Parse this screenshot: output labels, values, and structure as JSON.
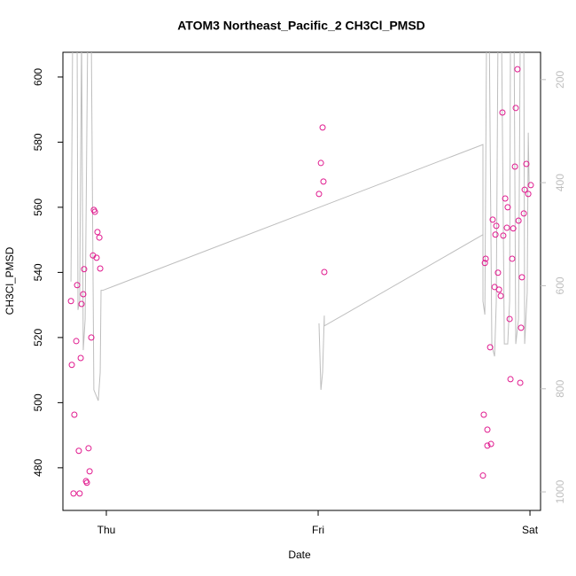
{
  "chart_data": {
    "type": "scatter",
    "title": "ATOM3 Northeast_Pacific_2 CH3Cl_PMSD",
    "xlabel": "Date",
    "ylabel": "CH3Cl_PMSD",
    "xlim": [
      -0.205,
      2.05
    ],
    "xticks": [
      {
        "value": 0,
        "label": "Thu"
      },
      {
        "value": 1,
        "label": "Fri"
      },
      {
        "value": 2,
        "label": "Sat"
      }
    ],
    "ylim": [
      466.9,
      607.6
    ],
    "yticks": [
      480,
      500,
      520,
      540,
      560,
      580,
      600
    ],
    "y2lim": [
      1036,
      147
    ],
    "y2ticks": [
      200,
      400,
      600,
      800,
      1000
    ],
    "y2color": "#bebebe",
    "series": [
      {
        "type": "scatter",
        "color": "#e0198e",
        "x": [
          -0.167,
          -0.163,
          -0.151,
          -0.155,
          -0.138,
          -0.142,
          -0.13,
          -0.126,
          -0.117,
          -0.121,
          -0.109,
          -0.105,
          -0.096,
          -0.092,
          -0.084,
          -0.079,
          -0.071,
          -0.059,
          -0.054,
          -0.063,
          -0.042,
          -0.033,
          -0.046,
          -0.029,
          1.021,
          1.013,
          1.025,
          1.004,
          1.029,
          1.778,
          1.782,
          1.791,
          1.787,
          1.799,
          1.799,
          1.816,
          1.812,
          1.824,
          1.833,
          1.837,
          1.841,
          1.849,
          1.854,
          1.862,
          1.87,
          1.874,
          1.883,
          1.891,
          1.895,
          1.904,
          1.908,
          1.916,
          1.921,
          1.929,
          1.933,
          1.941,
          1.946,
          1.954,
          1.958,
          1.962,
          1.971,
          1.975,
          1.983,
          1.992,
          2.004
        ],
        "values": [
          531.2,
          511.6,
          496.3,
          472.1,
          536.1,
          518.9,
          485.2,
          472.1,
          530.3,
          513.7,
          533.3,
          541.0,
          475.9,
          475.4,
          486.0,
          478.9,
          520.0,
          559.2,
          558.6,
          545.2,
          552.4,
          550.7,
          544.5,
          541.2,
          584.5,
          573.6,
          567.9,
          564.1,
          540.1,
          477.6,
          496.3,
          544.2,
          542.9,
          491.7,
          486.8,
          487.3,
          517.0,
          556.2,
          535.5,
          551.6,
          554.3,
          539.9,
          534.7,
          532.8,
          589.1,
          551.3,
          562.7,
          553.7,
          560.0,
          525.7,
          507.2,
          544.2,
          553.5,
          572.5,
          590.5,
          602.4,
          555.9,
          506.1,
          523.0,
          538.5,
          558.1,
          565.4,
          573.3,
          564.1,
          566.8
        ]
      },
      {
        "type": "line",
        "axis": "y2",
        "color": "#bebebe",
        "x": [
          -0.167,
          -0.159,
          -0.138,
          -0.134,
          -0.126,
          -0.117,
          -0.109,
          -0.1,
          -0.088,
          -0.071,
          -0.059,
          -0.038,
          -0.029,
          -0.025,
          -0.017,
          1.778,
          1.778,
          1.787,
          1.795,
          1.808,
          1.82,
          1.833,
          1.841,
          1.849,
          1.866,
          1.879,
          1.895,
          1.904,
          1.908,
          1.925,
          1.933,
          1.946,
          1.954,
          1.971,
          1.975,
          1.987,
          1.992,
          1.996,
          null,
          1.004,
          1.013,
          1.021,
          1.029,
          1.029,
          1.778
        ],
        "values": [
          592,
          114,
          114,
          647,
          630,
          114,
          725,
          665,
          114,
          114,
          802,
          823,
          768,
          609,
          609,
          326,
          630,
          656,
          114,
          114,
          716,
          737,
          630,
          114,
          114,
          713,
          713,
          630,
          114,
          114,
          713,
          665,
          114,
          114,
          713,
          613,
          303,
          406,
          null,
          673,
          802,
          768,
          658,
          678,
          501
        ]
      }
    ]
  }
}
